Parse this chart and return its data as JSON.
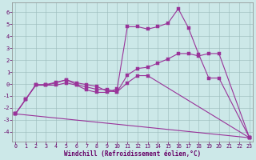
{
  "bg_color": "#cce8e8",
  "line_color": "#993399",
  "grid_color": "#99bbbb",
  "xlabel": "Windchill (Refroidissement éolien,°C)",
  "xlabel_color": "#660066",
  "tick_color": "#660066",
  "ylim": [
    -4.8,
    6.8
  ],
  "xlim": [
    -0.3,
    23.3
  ],
  "yticks": [
    -4,
    -3,
    -2,
    -1,
    0,
    1,
    2,
    3,
    4,
    5,
    6
  ],
  "xticks": [
    0,
    1,
    2,
    3,
    4,
    5,
    6,
    7,
    8,
    9,
    10,
    11,
    12,
    13,
    14,
    15,
    16,
    17,
    18,
    19,
    20,
    21,
    22,
    23
  ],
  "lines": [
    {
      "x": [
        0,
        1,
        2,
        3,
        4,
        5,
        6,
        7,
        8,
        9,
        10,
        11,
        12,
        13,
        14,
        15,
        16,
        17,
        18,
        19,
        20,
        23
      ],
      "y": [
        -2.5,
        -1.3,
        -0.1,
        -0.1,
        -0.1,
        0.1,
        -0.1,
        -0.5,
        -0.7,
        -0.7,
        -0.4,
        4.8,
        4.8,
        4.6,
        4.8,
        5.1,
        6.3,
        4.7,
        2.5,
        0.5,
        0.5,
        -4.5
      ]
    },
    {
      "x": [
        0,
        1,
        2,
        3,
        4,
        5,
        6,
        7,
        8,
        9,
        10,
        11,
        12,
        13,
        14,
        15,
        16,
        17,
        18,
        19,
        20,
        23
      ],
      "y": [
        -2.5,
        -1.3,
        -0.1,
        -0.1,
        0.1,
        0.35,
        -0.05,
        -0.25,
        -0.45,
        -0.45,
        -0.65,
        0.75,
        1.3,
        1.4,
        1.75,
        2.1,
        2.55,
        2.55,
        2.35,
        2.55,
        2.55,
        -4.5
      ]
    },
    {
      "x": [
        0,
        1,
        2,
        3,
        4,
        5,
        6,
        7,
        8,
        9,
        10,
        11,
        12,
        13,
        23
      ],
      "y": [
        -2.5,
        -1.3,
        -0.05,
        -0.05,
        0.15,
        0.35,
        0.1,
        -0.05,
        -0.2,
        -0.6,
        -0.65,
        0.1,
        0.7,
        0.7,
        -4.5
      ]
    },
    {
      "x": [
        0,
        23
      ],
      "y": [
        -2.5,
        -4.5
      ]
    }
  ]
}
